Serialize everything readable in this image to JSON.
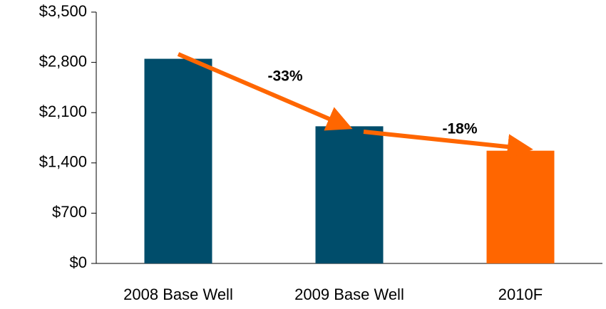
{
  "chart_data": {
    "type": "bar",
    "categories": [
      "2008 Base Well",
      "2009 Base Well",
      "2010F"
    ],
    "values": [
      2850,
      1910,
      1570
    ],
    "colors": [
      "#004d6b",
      "#004d6b",
      "#ff6600"
    ],
    "ylim": [
      0,
      3500
    ],
    "yticks": [
      {
        "value": 0,
        "label": "$0"
      },
      {
        "value": 700,
        "label": "$700"
      },
      {
        "value": 1400,
        "label": "$1,400"
      },
      {
        "value": 2100,
        "label": "$2,100"
      },
      {
        "value": 2800,
        "label": "$2,800"
      },
      {
        "value": 3500,
        "label": "$3,500"
      }
    ],
    "annotations": [
      "-33%",
      "-18%"
    ],
    "arrow_color": "#ff6600"
  }
}
